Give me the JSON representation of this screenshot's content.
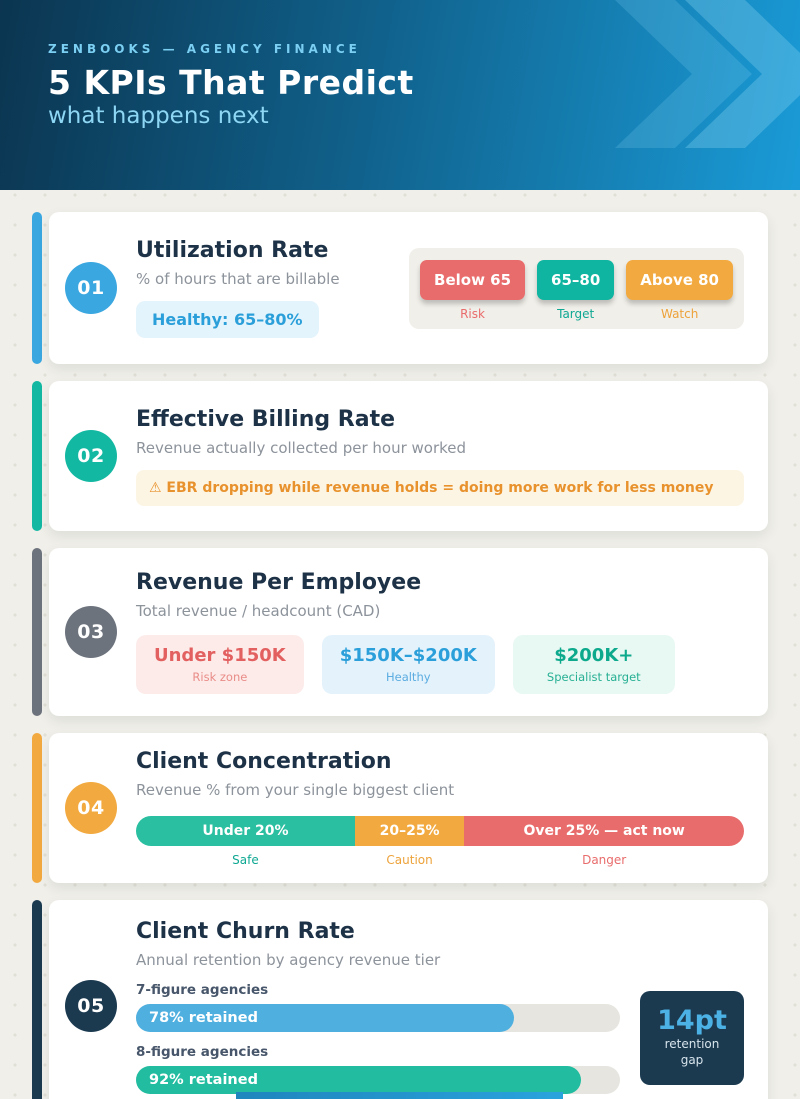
{
  "header": {
    "eyebrow": "ZENBOOKS — AGENCY FINANCE",
    "title": "5 KPIs That Predict",
    "subtitle": "what happens next"
  },
  "colors": {
    "page_bg": "#f0efe9",
    "header_gradient_start": "#0b3550",
    "header_gradient_end": "#1a9bd7",
    "blue": "#3aa7e0",
    "teal": "#13b8a2",
    "grey": "#6d737d",
    "orange": "#f2a93f",
    "red": "#e96c6c",
    "navy": "#1b3a50"
  },
  "cards": [
    {
      "number": "01",
      "title": "Utilization Rate",
      "subtitle": "% of hours that are billable",
      "badge": "Healthy: 65–80%",
      "pills": [
        {
          "label": "Below 65",
          "caption": "Risk"
        },
        {
          "label": "65–80",
          "caption": "Target"
        },
        {
          "label": "Above 80",
          "caption": "Watch"
        }
      ]
    },
    {
      "number": "02",
      "title": "Effective Billing Rate",
      "subtitle": "Revenue actually collected per hour worked",
      "warning": "⚠ EBR dropping while revenue holds = doing more work for less money"
    },
    {
      "number": "03",
      "title": "Revenue Per Employee",
      "subtitle": "Total revenue / headcount (CAD)",
      "stats": [
        {
          "value": "Under $150K",
          "caption": "Risk zone"
        },
        {
          "value": "$150K–$200K",
          "caption": "Healthy"
        },
        {
          "value": "$200K+",
          "caption": "Specialist target"
        }
      ]
    },
    {
      "number": "04",
      "title": "Client Concentration",
      "subtitle": "Revenue % from your single biggest client",
      "segments": [
        {
          "label": "Under 20%",
          "caption": "Safe",
          "width_pct": 36
        },
        {
          "label": "20–25%",
          "caption": "Caution",
          "width_pct": 18
        },
        {
          "label": "Over 25% — act now",
          "caption": "Danger",
          "width_pct": 46
        }
      ]
    },
    {
      "number": "05",
      "title": "Client Churn Rate",
      "subtitle": "Annual retention by agency revenue tier",
      "bars": [
        {
          "tier": "7-figure agencies",
          "label": "78% retained",
          "percent": 78
        },
        {
          "tier": "8-figure agencies",
          "label": "92% retained",
          "percent": 92
        }
      ],
      "callout": {
        "value": "14pt",
        "line1": "retention",
        "line2": "gap"
      }
    }
  ]
}
